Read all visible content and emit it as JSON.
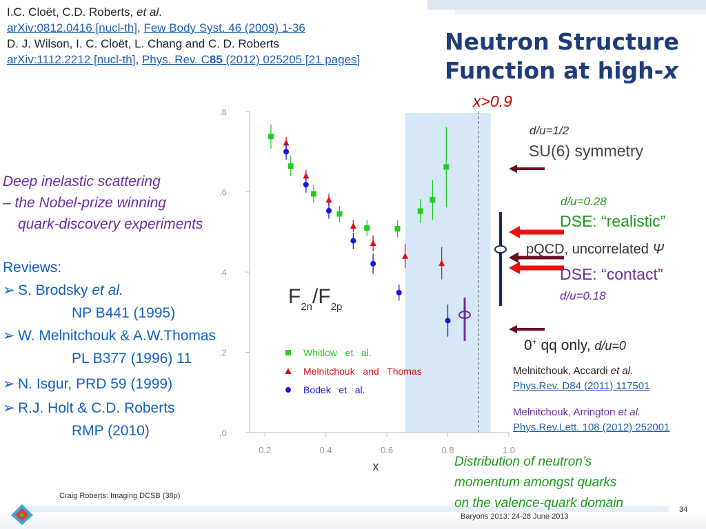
{
  "citations": {
    "line1_authors": "I.C. Cloët, C.D. Roberts, ",
    "line1_etal": "et al",
    "line1_end": ".",
    "line2_arxiv": "arXiv:0812.0416 [nucl-th]",
    "line2_sep": ", ",
    "line2_journal": "Few Body Syst. 46 (2009) 1-36",
    "line3_authors": "D. J. Wilson, I. C. Cloët, L. Chang and C. D. Roberts",
    "line4_arxiv": "arXiv:1112.2212 [nucl-th]",
    "line4_sep": ", ",
    "line4_journal_a": "Phys. Rev. C",
    "line4_journal_b": "85",
    "line4_journal_c": " (2012) 025205 [21 pages]"
  },
  "title": {
    "line1": "Neutron Structure",
    "line2": "Function at high-",
    "line2_var": "x"
  },
  "highx_label": "x>0.9",
  "dis_text": {
    "line1": "Deep inelastic scattering",
    "line2": "– the Nobel-prize winning",
    "line3": "quark-discovery experiments"
  },
  "reviews": {
    "heading": "Reviews:",
    "items": [
      {
        "text": "S. Brodsky ",
        "etal": "et al.",
        "sub": "NP B441 (1995)"
      },
      {
        "text": "W. Melnitchouk & A.W.Thomas",
        "sub": "PL B377 (1996) 11"
      },
      {
        "text": "N. Isgur, PRD 59 (1999)"
      },
      {
        "text": "R.J. Holt & C.D. Roberts",
        "sub": "RMP (2010)"
      }
    ],
    "bullet_glyph": "➢"
  },
  "right_labels": {
    "su6_ratio": "d/u=1/2",
    "su6_name": "SU(6) symmetry",
    "dse_real_ratio": "d/u=0.28",
    "dse_real_name": "DSE: “realistic”",
    "pqcd_a": "pQCD",
    "pqcd_b": ", uncorrelated ",
    "pqcd_psi": "Ψ",
    "dse_contact_name": "DSE: “contact”",
    "dse_contact_ratio": "d/u=0.18",
    "scalar_a": "0",
    "scalar_sup": "+",
    "scalar_b": " qq only, ",
    "scalar_ratio": "d/u=0"
  },
  "refs_right": {
    "r1_authors": "Melnitchouk, Accardi ",
    "r1_etal": "et al",
    "r1_end": ".",
    "r1_link": "Phys.Rev. D84 (2011) 117501",
    "r2_authors": "Melnitchouk, Arrington ",
    "r2_etal": "et al.",
    "r2_link": "Phys.Rev.Lett. 108 (2012) 252001"
  },
  "distribution_text": {
    "line1": "Distribution of neutron’s",
    "line2": "momentum amongst quarks",
    "line3": "on the  valence-quark domain"
  },
  "footer": {
    "left": "Craig Roberts: Imaging DCSB (38p)",
    "center": "Baryons 2013: 24-28 June 2013",
    "page": "34"
  },
  "colors": {
    "title": "#1f3c78",
    "purple": "#6b2aa0",
    "blue": "#1060c0",
    "red": "#c00000",
    "green": "#1a9a1a",
    "darkred": "#6b1020",
    "highlight": "#d6e8f7"
  },
  "chart_data": {
    "type": "scatter",
    "title": "",
    "xlabel": "x",
    "ylabel": "",
    "panel_label": {
      "main": "F",
      "sub1": "2n",
      "slash": "/F",
      "sub2": "2p"
    },
    "xlim": [
      0.15,
      1.0
    ],
    "ylim": [
      0.0,
      0.8
    ],
    "x_ticks": [
      "0.2",
      "0.4",
      "0.6",
      "0.8",
      "1.0"
    ],
    "y_ticks": [
      ".0",
      ".2",
      ".4",
      ".6",
      ".8"
    ],
    "shaded_region_x": [
      0.66,
      0.94
    ],
    "dashed_line_x": 0.9,
    "series": [
      {
        "name": "Whitlow   et   al.",
        "marker": "square",
        "color": "#22cc22",
        "points": [
          {
            "x": 0.22,
            "y": 0.738,
            "err": 0.03
          },
          {
            "x": 0.285,
            "y": 0.664,
            "err": 0.025
          },
          {
            "x": 0.36,
            "y": 0.595,
            "err": 0.022
          },
          {
            "x": 0.445,
            "y": 0.545,
            "err": 0.02
          },
          {
            "x": 0.535,
            "y": 0.51,
            "err": 0.02
          },
          {
            "x": 0.635,
            "y": 0.508,
            "err": 0.022
          },
          {
            "x": 0.71,
            "y": 0.552,
            "err": 0.03
          },
          {
            "x": 0.75,
            "y": 0.58,
            "err": 0.05
          },
          {
            "x": 0.795,
            "y": 0.662,
            "err": 0.1
          }
        ]
      },
      {
        "name": "Melnitchouk   and   Thomas",
        "marker": "triangle",
        "color": "#e01010",
        "points": [
          {
            "x": 0.27,
            "y": 0.722,
            "err": 0.015
          },
          {
            "x": 0.335,
            "y": 0.64,
            "err": 0.015
          },
          {
            "x": 0.41,
            "y": 0.58,
            "err": 0.015
          },
          {
            "x": 0.49,
            "y": 0.515,
            "err": 0.015
          },
          {
            "x": 0.555,
            "y": 0.472,
            "err": 0.02
          },
          {
            "x": 0.66,
            "y": 0.44,
            "err": 0.03
          },
          {
            "x": 0.78,
            "y": 0.422,
            "err": 0.04
          }
        ]
      },
      {
        "name": "Bodek   et   al.",
        "marker": "circle",
        "color": "#1515dd",
        "points": [
          {
            "x": 0.27,
            "y": 0.7,
            "err": 0.02
          },
          {
            "x": 0.335,
            "y": 0.618,
            "err": 0.02
          },
          {
            "x": 0.41,
            "y": 0.553,
            "err": 0.02
          },
          {
            "x": 0.49,
            "y": 0.478,
            "err": 0.02
          },
          {
            "x": 0.555,
            "y": 0.421,
            "err": 0.025
          },
          {
            "x": 0.64,
            "y": 0.349,
            "err": 0.02
          },
          {
            "x": 0.8,
            "y": 0.279,
            "err": 0.04
          }
        ]
      }
    ]
  }
}
